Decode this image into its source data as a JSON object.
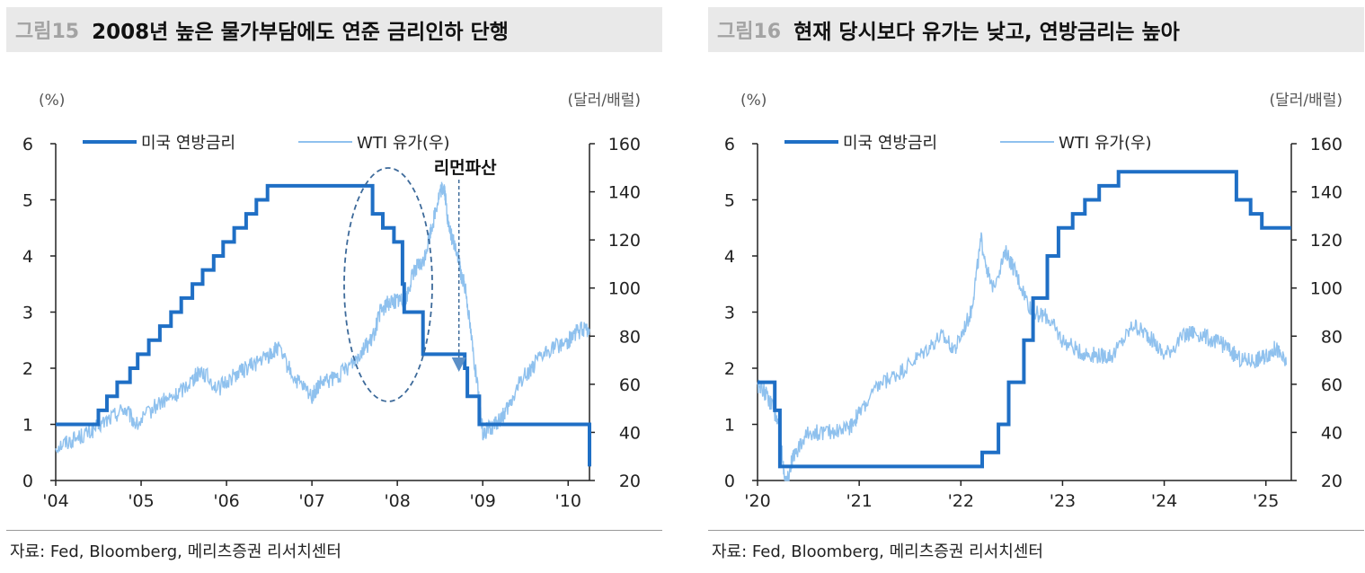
{
  "colors": {
    "rate": "#1f6fc5",
    "wti": "#8fc1ee",
    "axis": "#222222",
    "annot": "#3d6a9a"
  },
  "panels": [
    {
      "figure_label": "그림15",
      "title": "2008년 높은 물가부담에도 연준 금리인하 단행",
      "source": "자료: Fed, Bloomberg, 메리츠증권 리서치센터",
      "chart_data": {
        "type": "line",
        "title": "2008년 높은 물가부담에도 연준 금리인하 단행",
        "left_unit": "(%)",
        "right_unit": "(달러/배럴)",
        "ylim_left": [
          0,
          6
        ],
        "ylim_right": [
          20,
          160
        ],
        "yticks_left": [
          "0",
          "1",
          "2",
          "3",
          "4",
          "5",
          "6"
        ],
        "yticks_right": [
          "20",
          "40",
          "60",
          "80",
          "100",
          "120",
          "140",
          "160"
        ],
        "xlim": [
          2004.0,
          2010.25
        ],
        "x_tick_labels": [
          "'04",
          "'05",
          "'06",
          "'07",
          "'08",
          "'09",
          "'10"
        ],
        "x_tick_values": [
          2004,
          2005,
          2006,
          2007,
          2008,
          2009,
          2010
        ],
        "legend": [
          "미국 연방금리",
          "WTI 유가(우)"
        ],
        "series": [
          {
            "name": "미국 연방금리",
            "axis": "left",
            "style": "step",
            "x": [
              2004.0,
              2004.5,
              2004.6,
              2004.72,
              2004.87,
              2004.96,
              2005.09,
              2005.22,
              2005.35,
              2005.47,
              2005.6,
              2005.72,
              2005.85,
              2005.96,
              2006.09,
              2006.23,
              2006.35,
              2006.48,
              2007.71,
              2007.83,
              2007.96,
              2008.06,
              2008.08,
              2008.3,
              2008.79,
              2008.82,
              2008.96,
              2010.25
            ],
            "values": [
              1.0,
              1.25,
              1.5,
              1.75,
              2.0,
              2.25,
              2.5,
              2.75,
              3.0,
              3.25,
              3.5,
              3.75,
              4.0,
              4.25,
              4.5,
              4.75,
              5.0,
              5.25,
              4.75,
              4.5,
              4.25,
              3.5,
              3.0,
              2.25,
              2.0,
              1.5,
              1.0,
              0.25
            ]
          },
          {
            "name": "WTI 유가(우)",
            "axis": "right",
            "style": "line",
            "x": [
              2004.0,
              2004.2,
              2004.4,
              2004.6,
              2004.8,
              2004.95,
              2005.2,
              2005.4,
              2005.6,
              2005.7,
              2005.9,
              2006.1,
              2006.3,
              2006.5,
              2006.6,
              2006.8,
              2007.0,
              2007.1,
              2007.3,
              2007.5,
              2007.6,
              2007.7,
              2007.8,
              2007.9,
              2008.0,
              2008.1,
              2008.2,
              2008.3,
              2008.4,
              2008.5,
              2008.55,
              2008.6,
              2008.7,
              2008.75,
              2008.8,
              2008.9,
              2009.0,
              2009.1,
              2009.2,
              2009.3,
              2009.45,
              2009.6,
              2009.8,
              2010.0,
              2010.1,
              2010.25
            ],
            "values": [
              34,
              37,
              40,
              45,
              50,
              43,
              52,
              55,
              62,
              66,
              58,
              64,
              68,
              72,
              75,
              62,
              55,
              60,
              63,
              70,
              75,
              78,
              90,
              94,
              95,
              95,
              108,
              110,
              125,
              140,
              142,
              125,
              115,
              105,
              100,
              70,
              40,
              42,
              45,
              50,
              62,
              68,
              75,
              78,
              82,
              83
            ]
          }
        ],
        "annotations": [
          {
            "type": "ellipse",
            "note": "dashed ellipse around 2007.4-2008.3"
          },
          {
            "type": "arrow",
            "label": "리먼파산",
            "x": 2008.7
          }
        ]
      }
    },
    {
      "figure_label": "그림16",
      "title": "현재 당시보다 유가는 낮고, 연방금리는 높아",
      "source": "자료: Fed, Bloomberg, 메리츠증권 리서치센터",
      "chart_data": {
        "type": "line",
        "title": "현재 당시보다 유가는 낮고, 연방금리는 높아",
        "left_unit": "(%)",
        "right_unit": "(달러/배럴)",
        "ylim_left": [
          0,
          6
        ],
        "ylim_right": [
          20,
          160
        ],
        "yticks_left": [
          "0",
          "1",
          "2",
          "3",
          "4",
          "5",
          "6"
        ],
        "yticks_right": [
          "20",
          "40",
          "60",
          "80",
          "100",
          "120",
          "140",
          "160"
        ],
        "xlim": [
          2020.0,
          2025.25
        ],
        "x_tick_labels": [
          "'20",
          "'21",
          "'22",
          "'23",
          "'24",
          "'25"
        ],
        "x_tick_values": [
          2020,
          2021,
          2022,
          2023,
          2024,
          2025
        ],
        "legend": [
          "미국 연방금리",
          "WTI 유가(우)"
        ],
        "series": [
          {
            "name": "미국 연방금리",
            "axis": "right_hidden",
            "style": "step",
            "x": [
              2020.0,
              2020.17,
              2020.22,
              2022.21,
              2022.37,
              2022.47,
              2022.62,
              2022.71,
              2022.85,
              2022.96,
              2023.1,
              2023.22,
              2023.36,
              2023.55,
              2024.71,
              2024.85,
              2024.96,
              2025.25
            ],
            "values": [
              1.75,
              1.25,
              0.25,
              0.5,
              1.0,
              1.75,
              2.5,
              3.25,
              4.0,
              4.5,
              4.75,
              5.0,
              5.25,
              5.5,
              5.0,
              4.75,
              4.5,
              4.5
            ]
          },
          {
            "name": "WTI 유가(우)",
            "axis": "right",
            "style": "line",
            "x": [
              2020.0,
              2020.1,
              2020.2,
              2020.28,
              2020.35,
              2020.5,
              2020.7,
              2020.9,
              2021.0,
              2021.2,
              2021.4,
              2021.6,
              2021.8,
              2021.95,
              2022.1,
              2022.2,
              2022.3,
              2022.45,
              2022.55,
              2022.7,
              2022.85,
              2023.0,
              2023.2,
              2023.35,
              2023.5,
              2023.7,
              2023.85,
              2024.0,
              2024.2,
              2024.3,
              2024.5,
              2024.6,
              2024.75,
              2024.9,
              2025.0,
              2025.1,
              2025.2
            ],
            "values": [
              60,
              55,
              45,
              18,
              30,
              40,
              40,
              42,
              48,
              60,
              65,
              72,
              80,
              75,
              90,
              120,
              100,
              115,
              105,
              90,
              88,
              78,
              73,
              72,
              72,
              85,
              80,
              72,
              80,
              82,
              78,
              76,
              70,
              70,
              72,
              75,
              68
            ]
          }
        ]
      }
    }
  ]
}
